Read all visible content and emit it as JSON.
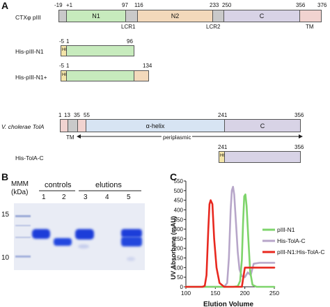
{
  "panelA": {
    "letter": "A",
    "ctx": {
      "label": "CTXφ pIII",
      "positions": [
        "-19",
        "+1",
        "97",
        "116",
        "233",
        "250",
        "356",
        "376"
      ],
      "segments": [
        "N1",
        "N2",
        "C"
      ],
      "lcr1": "LCR1",
      "lcr2": "LCR2",
      "tm": "TM"
    },
    "hisN1": {
      "label": "His-pIII-N1",
      "start": "-5",
      "one": "1",
      "end": "96",
      "tag": "H6"
    },
    "hisN1plus": {
      "label": "His-pIII-N1+",
      "start": "-5",
      "one": "1",
      "end": "134",
      "tag": "H6"
    },
    "tola": {
      "label": "V. cholerae TolA",
      "positions": [
        "1",
        "13",
        "35",
        "55",
        "241",
        "356"
      ],
      "helix": "α-helix",
      "c": "C",
      "tm": "TM",
      "periplasmic": "periplasmic"
    },
    "hisTolA": {
      "label": "His-TolA-C",
      "start": "241",
      "end": "356",
      "tag": "H6"
    }
  },
  "panelB": {
    "letter": "B",
    "mmm": "MMM",
    "kda": "(kDa)",
    "controls": "controls",
    "elutions": "elutions",
    "lanes": [
      "1",
      "2",
      "3",
      "4",
      "5"
    ],
    "markers": [
      "15",
      "10"
    ]
  },
  "panelC": {
    "letter": "C",
    "colors": {
      "pIII-N1": "#7ed46b",
      "His-TolA-C": "#b7a6c9",
      "pIII-N1:His-TolA-C": "#e8281f"
    },
    "chart_data": {
      "type": "line",
      "xlabel": "Elution Volume",
      "ylabel": "UV Absorbane (mAU)",
      "xlim": [
        100,
        250
      ],
      "ylim": [
        0,
        550
      ],
      "xticks": [
        "100",
        "150",
        "200",
        "250"
      ],
      "yticks": [
        "0",
        "50",
        "100",
        "150",
        "200",
        "250",
        "300",
        "350",
        "400",
        "450",
        "500",
        "550"
      ],
      "series": [
        {
          "name": "pIII-N1",
          "x": [
            100,
            180,
            188,
            192,
            195,
            197,
            199,
            201,
            203,
            206,
            209,
            213,
            220,
            250
          ],
          "y": [
            0,
            0,
            3,
            30,
            140,
            330,
            470,
            480,
            420,
            250,
            80,
            10,
            0,
            0
          ]
        },
        {
          "name": "His-TolA-C",
          "x": [
            100,
            165,
            170,
            173,
            176,
            178,
            180,
            182,
            185,
            188,
            191,
            195,
            200,
            205,
            210,
            215,
            225,
            250
          ],
          "y": [
            0,
            0,
            20,
            150,
            400,
            500,
            520,
            480,
            330,
            180,
            90,
            55,
            50,
            75,
            60,
            120,
            125,
            125
          ]
        },
        {
          "name": "pIII-N1:His-TolA-C",
          "x": [
            100,
            128,
            132,
            135,
            138,
            140,
            142,
            145,
            148,
            152,
            157,
            165,
            180,
            195,
            200,
            250
          ],
          "y": [
            0,
            0,
            5,
            60,
            300,
            430,
            450,
            430,
            250,
            100,
            20,
            0,
            0,
            0,
            100,
            100
          ]
        }
      ]
    }
  }
}
